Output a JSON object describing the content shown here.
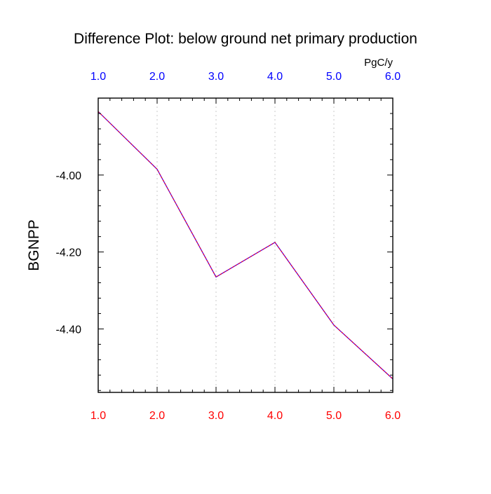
{
  "chart_data": {
    "type": "line",
    "title": "Difference Plot: below ground net primary production",
    "units": "PgC/y",
    "ylabel": "BGNPP",
    "xlabel": "",
    "x": [
      1.0,
      2.0,
      3.0,
      4.0,
      5.0,
      6.0
    ],
    "series": [
      {
        "values": [
          -3.835,
          -3.985,
          -4.265,
          -4.175,
          -4.39,
          -4.53
        ],
        "color": "#6a00d0",
        "dash_color": "#ff0000"
      }
    ],
    "xlim": [
      1.0,
      6.0
    ],
    "ylim": [
      -4.565,
      -3.8
    ],
    "x_ticks": [
      1.0,
      2.0,
      3.0,
      4.0,
      5.0,
      6.0
    ],
    "x_tick_labels_bottom": [
      "1.0",
      "2.0",
      "3.0",
      "4.0",
      "5.0",
      "6.0"
    ],
    "x_tick_labels_top": [
      "1.0",
      "2.0",
      "3.0",
      "4.0",
      "5.0",
      "6.0"
    ],
    "y_ticks": [
      -4.0,
      -4.2,
      -4.4
    ],
    "y_tick_labels": [
      "-4.00",
      "-4.20",
      "-4.40"
    ],
    "grid": "vertical-dotted",
    "colors": {
      "top_tick_labels": "#0000ff",
      "bottom_tick_labels": "#ff0000",
      "axes": "#000000",
      "grid": "#c8c8c8"
    }
  }
}
